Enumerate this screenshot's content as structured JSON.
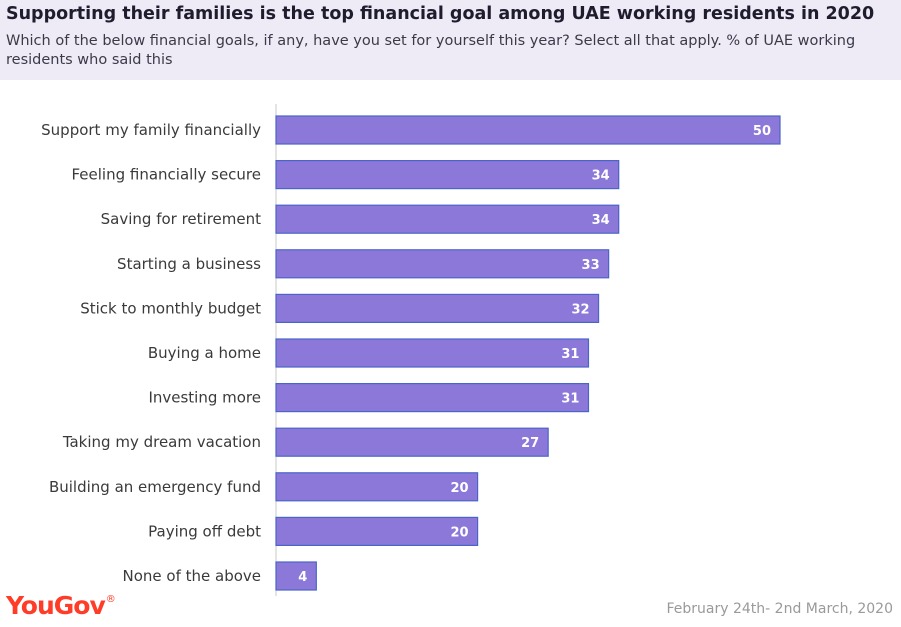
{
  "header": {
    "title": "Supporting their families is the top financial goal among UAE working residents in 2020",
    "subtitle": "Which of the below financial goals, if any, have you set for yourself this year? Select all that apply. % of UAE working residents who said this"
  },
  "footer": {
    "brand": "YouGov",
    "date": "February 24th- 2nd March, 2020"
  },
  "colors": {
    "bar": "#8b78d9",
    "bar_stroke": "#4b64c8",
    "header_bg": "#eeebf7",
    "brand": "#ff3c28"
  },
  "chart_data": {
    "type": "bar",
    "orientation": "horizontal",
    "title": "Supporting their families is the top financial goal among UAE working residents in 2020",
    "categories": [
      "Support my family financially",
      "Feeling financially secure",
      "Saving for retirement",
      "Starting a business",
      "Stick to monthly budget",
      "Buying a home",
      "Investing more",
      "Taking my dream vacation",
      "Building an emergency fund",
      "Paying off debt",
      "None of the above"
    ],
    "values": [
      50,
      34,
      34,
      33,
      32,
      31,
      31,
      27,
      20,
      20,
      4
    ],
    "xlim": [
      0,
      60
    ],
    "grid": false
  }
}
